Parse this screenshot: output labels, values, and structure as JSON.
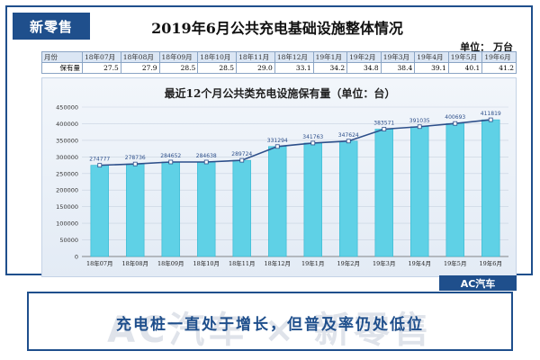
{
  "badge": "新零售",
  "report_title": "2019年6月公共充电基础设施整体情况",
  "unit": "单位：  万台",
  "summary_table": {
    "row_header_1": "月份",
    "row_header_2": "保有量",
    "months": [
      "18年07月",
      "18年08月",
      "18年09月",
      "18年10月",
      "18年11月",
      "18年12月",
      "19年1月",
      "19年2月",
      "19年3月",
      "19年4月",
      "19年5月",
      "19年6月"
    ],
    "values": [
      "27.5",
      "27.9",
      "28.5",
      "28.5",
      "29.0",
      "33.1",
      "34.2",
      "34.8",
      "38.4",
      "39.1",
      "40.1",
      "41.2"
    ]
  },
  "chart_data": {
    "type": "bar",
    "title": "最近12个月公共类充电设施保有量（单位：台）",
    "categories": [
      "18年07月",
      "18年08月",
      "18年09月",
      "18年10月",
      "18年11月",
      "18年12月",
      "19年1月",
      "19年2月",
      "19年3月",
      "19年4月",
      "19年5月",
      "19年6月"
    ],
    "values": [
      274777,
      278736,
      284652,
      284638,
      289724,
      331294,
      341763,
      347624,
      383571,
      391035,
      400693,
      411819
    ],
    "data_labels": [
      "274777",
      "278736",
      "284652",
      "284638",
      "289724",
      "331294",
      "341763",
      "347624",
      "383571",
      "391035",
      "400693",
      "411819"
    ],
    "ylim": [
      0,
      450000
    ],
    "yticks": [
      "0",
      "50000",
      "100000",
      "150000",
      "200000",
      "250000",
      "300000",
      "350000",
      "400000",
      "450000"
    ],
    "overlay": "line",
    "colors": {
      "bar": "#5fd1e6",
      "bar_dark": "#31b5cf",
      "line": "#2d4f8a",
      "label": "#2d4f8a"
    },
    "grid": true
  },
  "brand": "AC汽车",
  "watermark": "AC汽车 × 新零售",
  "caption": "充电桩一直处于增长，但普及率仍处低位"
}
